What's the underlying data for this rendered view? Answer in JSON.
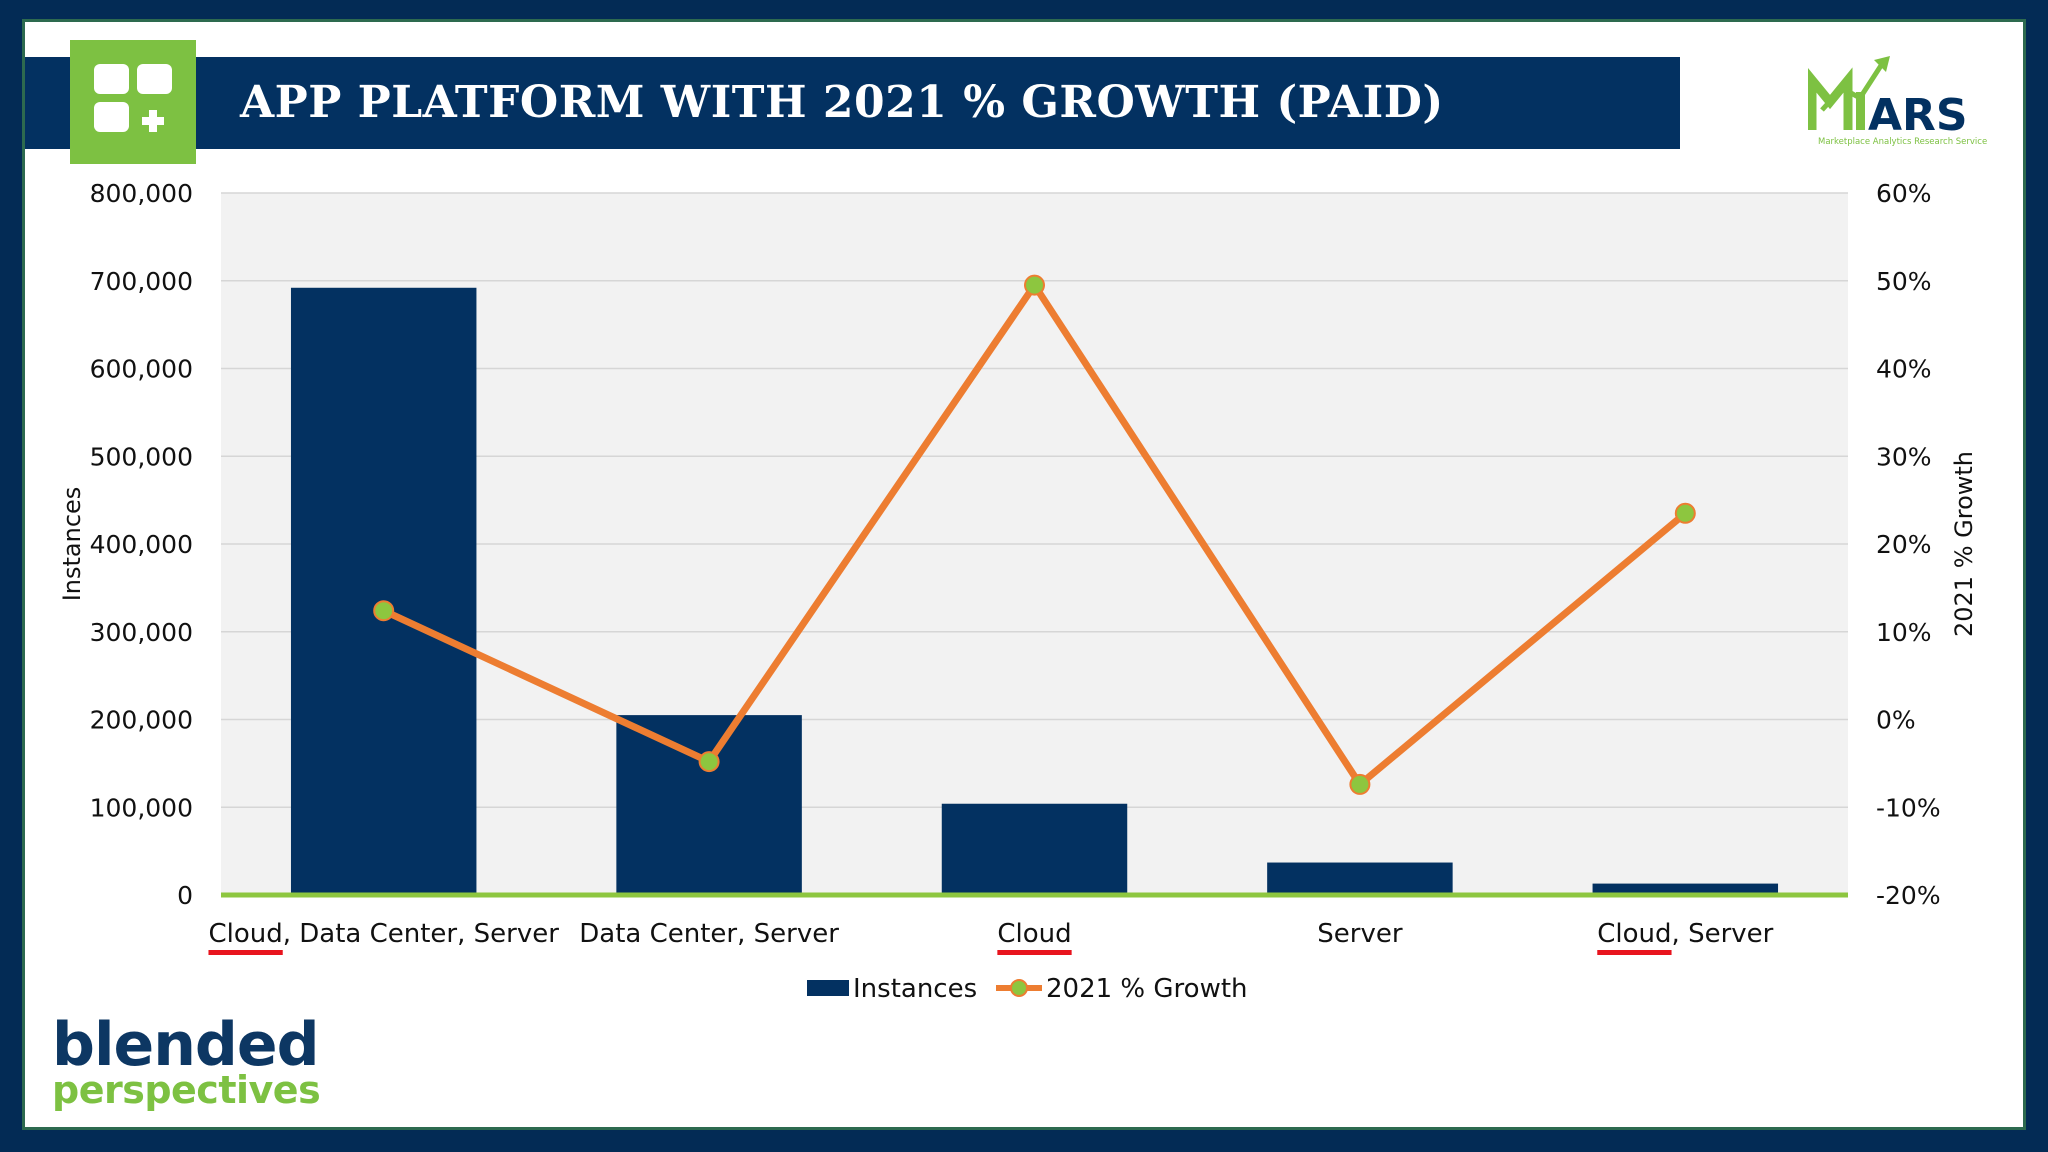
{
  "title": "APP PLATFORM WITH 2021 % GROWTH (PAID)",
  "logos": {
    "mars": {
      "text": "ARS",
      "tagline": "Marketplace Analytics Research Service"
    },
    "blended": {
      "line1": "blended",
      "line2": "perspectives"
    }
  },
  "colors": {
    "bar": "#033161",
    "line": "#ed7d31",
    "marker": "#8dc63f",
    "baseline": "#8dc63f",
    "plot_bg": "#f2f2f2",
    "underline": "#e8141e"
  },
  "chart_data": {
    "type": "bar",
    "title": "",
    "categories": [
      "Cloud, Data Center, Server",
      "Data Center, Server",
      "Cloud",
      "Server",
      "Cloud, Server"
    ],
    "category_underlined_word": [
      "Cloud",
      "",
      "Cloud",
      "",
      "Cloud"
    ],
    "ylabel": "Instances",
    "y2label": "2021 % Growth",
    "ylim": [
      0,
      800000
    ],
    "y2lim": [
      -20,
      60
    ],
    "yticks": [
      "0",
      "100,000",
      "200,000",
      "300,000",
      "400,000",
      "500,000",
      "600,000",
      "700,000",
      "800,000"
    ],
    "y2ticks": [
      "-20%",
      "-10%",
      "0%",
      "10%",
      "20%",
      "30%",
      "40%",
      "50%",
      "60%"
    ],
    "grid": true,
    "legend_placement": "bottom",
    "series": [
      {
        "name": "Instances",
        "type": "bar",
        "axis": "left",
        "values": [
          692000,
          205000,
          104000,
          37000,
          13000
        ]
      },
      {
        "name": "2021 % Growth",
        "type": "line",
        "axis": "right",
        "values": [
          12.4,
          -4.8,
          49.5,
          -7.4,
          23.5
        ]
      }
    ]
  }
}
